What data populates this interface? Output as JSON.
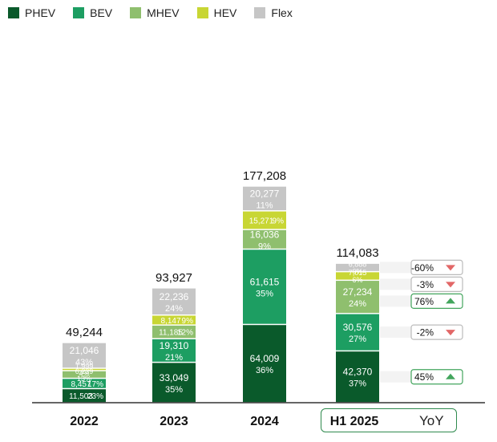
{
  "chart_data": {
    "type": "bar",
    "stacked": true,
    "legend_position": "top-left",
    "categories": [
      "2022",
      "2023",
      "2024",
      "H1  2025"
    ],
    "totals": [
      "49,244",
      "93,927",
      "177,208",
      "114,083"
    ],
    "series": [
      {
        "name": "PHEV",
        "color": "#0a5a2b",
        "values": [
          11503,
          33049,
          64009,
          42370
        ],
        "labels": [
          "11,503",
          "33,049",
          "64,009",
          "42,370"
        ],
        "shares": [
          "23%",
          "35%",
          "36%",
          "37%"
        ]
      },
      {
        "name": "BEV",
        "color": "#1d9e62",
        "values": [
          8457,
          19310,
          61615,
          30576
        ],
        "labels": [
          "8,457",
          "19,310",
          "61,615",
          "30,576"
        ],
        "shares": [
          "17%",
          "21%",
          "35%",
          "27%"
        ]
      },
      {
        "name": "MHEV",
        "color": "#8fbf6e",
        "values": [
          6239,
          11185,
          16036,
          27234
        ],
        "labels": [
          "6,239",
          "11,185",
          "16,036",
          "27,234"
        ],
        "shares": [
          "13%",
          "12%",
          "9%",
          "24%"
        ]
      },
      {
        "name": "HEV",
        "color": "#c8d634",
        "values": [
          1999,
          8147,
          15271,
          7015
        ],
        "labels": [
          "1,999",
          "8,147",
          "15,271",
          "7,015"
        ],
        "shares": [
          "4%",
          "9%",
          "9%",
          "6%"
        ]
      },
      {
        "name": "Flex",
        "color": "#c6c6c6",
        "values": [
          21046,
          22236,
          20277,
          6888
        ],
        "labels": [
          "21,046",
          "22,236",
          "20,277",
          "6,888"
        ],
        "shares": [
          "43%",
          "24%",
          "11%",
          "6%"
        ]
      }
    ],
    "yoy": {
      "label": "YoY",
      "values": [
        {
          "series": "Flex",
          "text": "-60%",
          "direction": "down"
        },
        {
          "series": "HEV",
          "text": "-3%",
          "direction": "down"
        },
        {
          "series": "MHEV",
          "text": "76%",
          "direction": "up"
        },
        {
          "series": "BEV",
          "text": "-2%",
          "direction": "down"
        },
        {
          "series": "PHEV",
          "text": "45%",
          "direction": "up"
        }
      ]
    },
    "colors": {
      "up": "#43a55d",
      "down": "#e26767",
      "yoy_box": "#2f8a4e"
    }
  }
}
